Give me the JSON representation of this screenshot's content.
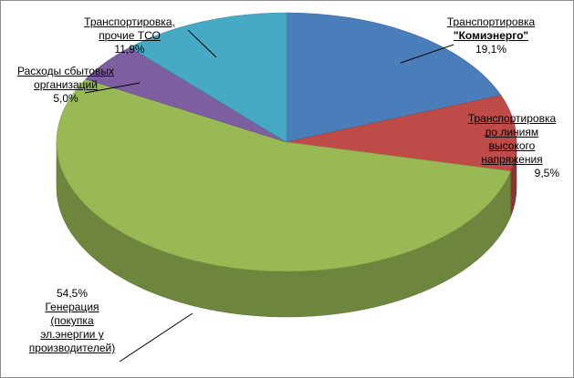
{
  "chart_data": {
    "type": "pie",
    "style": "3d",
    "slices": [
      {
        "label_lines": [
          "Транспортировка",
          "\"Комиэнерго\""
        ],
        "value": 19.1,
        "value_label": "19,1%",
        "color": "#4a7ebb"
      },
      {
        "label_lines": [
          "Транспортировка",
          "по линиям",
          "высокого",
          "напряжения"
        ],
        "value": 9.5,
        "value_label": "9,5%",
        "color": "#be4b48"
      },
      {
        "label_lines": [
          "Генерация",
          "(покупка",
          "эл.энергии у",
          "производителей)"
        ],
        "value": 54.5,
        "value_label": "54,5%",
        "color": "#98b954"
      },
      {
        "label_lines": [
          "Расходы сбытовых",
          "организаций"
        ],
        "value": 5.0,
        "value_label": "5,0%",
        "color": "#7d5fa0"
      },
      {
        "label_lines": [
          "Транспортировка,",
          "прочие ТСО"
        ],
        "value": 11.9,
        "value_label": "11,9%",
        "color": "#46aac5"
      }
    ]
  }
}
